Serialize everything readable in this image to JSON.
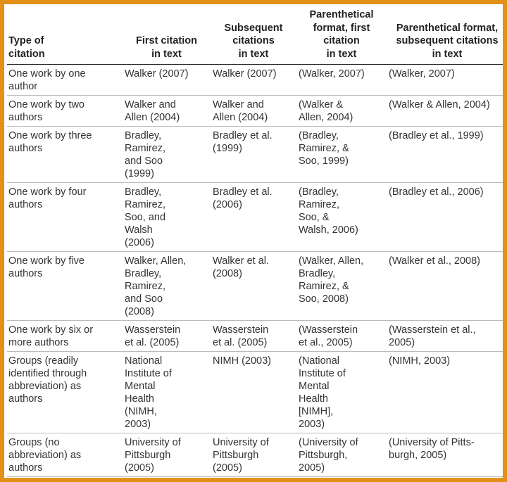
{
  "headers": [
    "Type of\ncitation",
    "First citation\nin text",
    "Subsequent\ncitations\nin text",
    "Parenthetical\nformat, first\ncitation\nin text",
    "Parenthetical format,\nsubsequent citations\nin text"
  ],
  "rows": [
    [
      "One work by one\nauthor",
      "Walker (2007)",
      "Walker (2007)",
      "(Walker, 2007)",
      "(Walker, 2007)"
    ],
    [
      "One work by two\nauthors",
      "Walker and\n   Allen (2004)",
      "Walker and\n   Allen (2004)",
      "(Walker &\n   Allen, 2004)",
      "(Walker & Allen, 2004)"
    ],
    [
      "One work by three\nauthors",
      "Bradley,\n   Ramirez,\n   and Soo\n   (1999)",
      "Bradley et al.\n   (1999)",
      "(Bradley,\n   Ramirez, &\n   Soo, 1999)",
      "(Bradley et al., 1999)"
    ],
    [
      "One work by four\nauthors",
      "Bradley,\n   Ramirez,\n   Soo, and\n   Walsh\n   (2006)",
      "Bradley et al.\n   (2006)",
      "(Bradley,\n   Ramirez,\n   Soo, &\n   Walsh, 2006)",
      "(Bradley et al., 2006)"
    ],
    [
      "One work by five\nauthors",
      "Walker, Allen,\n   Bradley,\n   Ramirez,\n   and Soo\n   (2008)",
      "Walker et al.\n   (2008)",
      "(Walker, Allen,\n   Bradley,\n   Ramirez, &\n   Soo, 2008)",
      "(Walker et al., 2008)"
    ],
    [
      "One work by six or\nmore authors",
      "Wasserstein\n   et al. (2005)",
      "Wasserstein\n   et al. (2005)",
      "(Wasserstein\n   et al., 2005)",
      "(Wasserstein et al.,\n   2005)"
    ],
    [
      "Groups (readily\n   identified through\n   abbreviation) as\n   authors",
      "National\n   Institute of\n   Mental\n   Health\n   (NIMH,\n   2003)",
      "NIMH (2003)",
      "(National\n   Institute of\n   Mental\n   Health\n   [NIMH],\n   2003)",
      "(NIMH, 2003)"
    ],
    [
      "Groups (no\n   abbreviation) as\n   authors",
      "University of\n   Pittsburgh\n   (2005)",
      "University of\n   Pittsburgh\n   (2005)",
      "(University of\n   Pittsburgh,\n   2005)",
      "(University of Pitts-\n   burgh, 2005)"
    ]
  ],
  "colors": {
    "frame": "#e3901a"
  }
}
